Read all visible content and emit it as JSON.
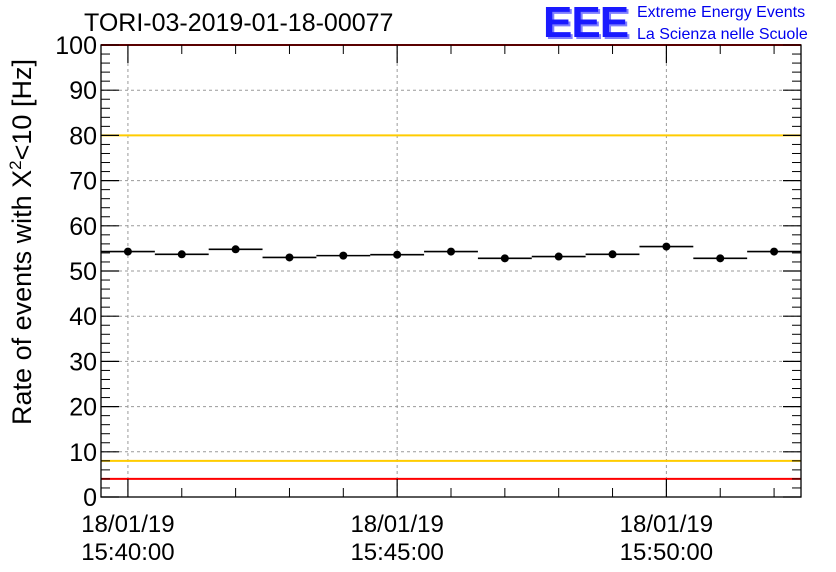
{
  "header": {
    "title": "TORI-03-2019-01-18-00077",
    "logo_mark": "EEE",
    "logo_line1": "Extreme Energy Events",
    "logo_line2": "La Scienza nelle Scuole"
  },
  "chart_data": {
    "type": "scatter",
    "title": "TORI-03-2019-01-18-00077",
    "ylabel_main": "Rate of events with X",
    "ylabel_sup": "2",
    "ylabel_tail": "<10 [Hz]",
    "ylim": [
      0,
      100
    ],
    "yticks": [
      0,
      10,
      20,
      30,
      40,
      50,
      60,
      70,
      80,
      90,
      100
    ],
    "xlim_minutes": [
      -0.5,
      12.5
    ],
    "xticks": [
      {
        "t": 0,
        "date": "18/01/19",
        "time": "15:40:00"
      },
      {
        "t": 5,
        "date": "18/01/19",
        "time": "15:45:00"
      },
      {
        "t": 10,
        "date": "18/01/19",
        "time": "15:50:00"
      }
    ],
    "grid": true,
    "series": [
      {
        "name": "rate",
        "x_minutes": [
          0,
          1,
          2,
          3,
          4,
          5,
          6,
          7,
          8,
          9,
          10,
          11,
          12
        ],
        "bin_halfwidth_minutes": 0.5,
        "values": [
          54.3,
          53.7,
          54.8,
          53.0,
          53.4,
          53.6,
          54.3,
          52.8,
          53.2,
          53.7,
          55.4,
          52.8,
          54.3
        ]
      }
    ],
    "reference_lines": [
      {
        "y": 100,
        "color": "#ff0000"
      },
      {
        "y": 80,
        "color": "#ffcc00"
      },
      {
        "y": 8,
        "color": "#ffcc00"
      },
      {
        "y": 4,
        "color": "#ff0000"
      }
    ]
  }
}
